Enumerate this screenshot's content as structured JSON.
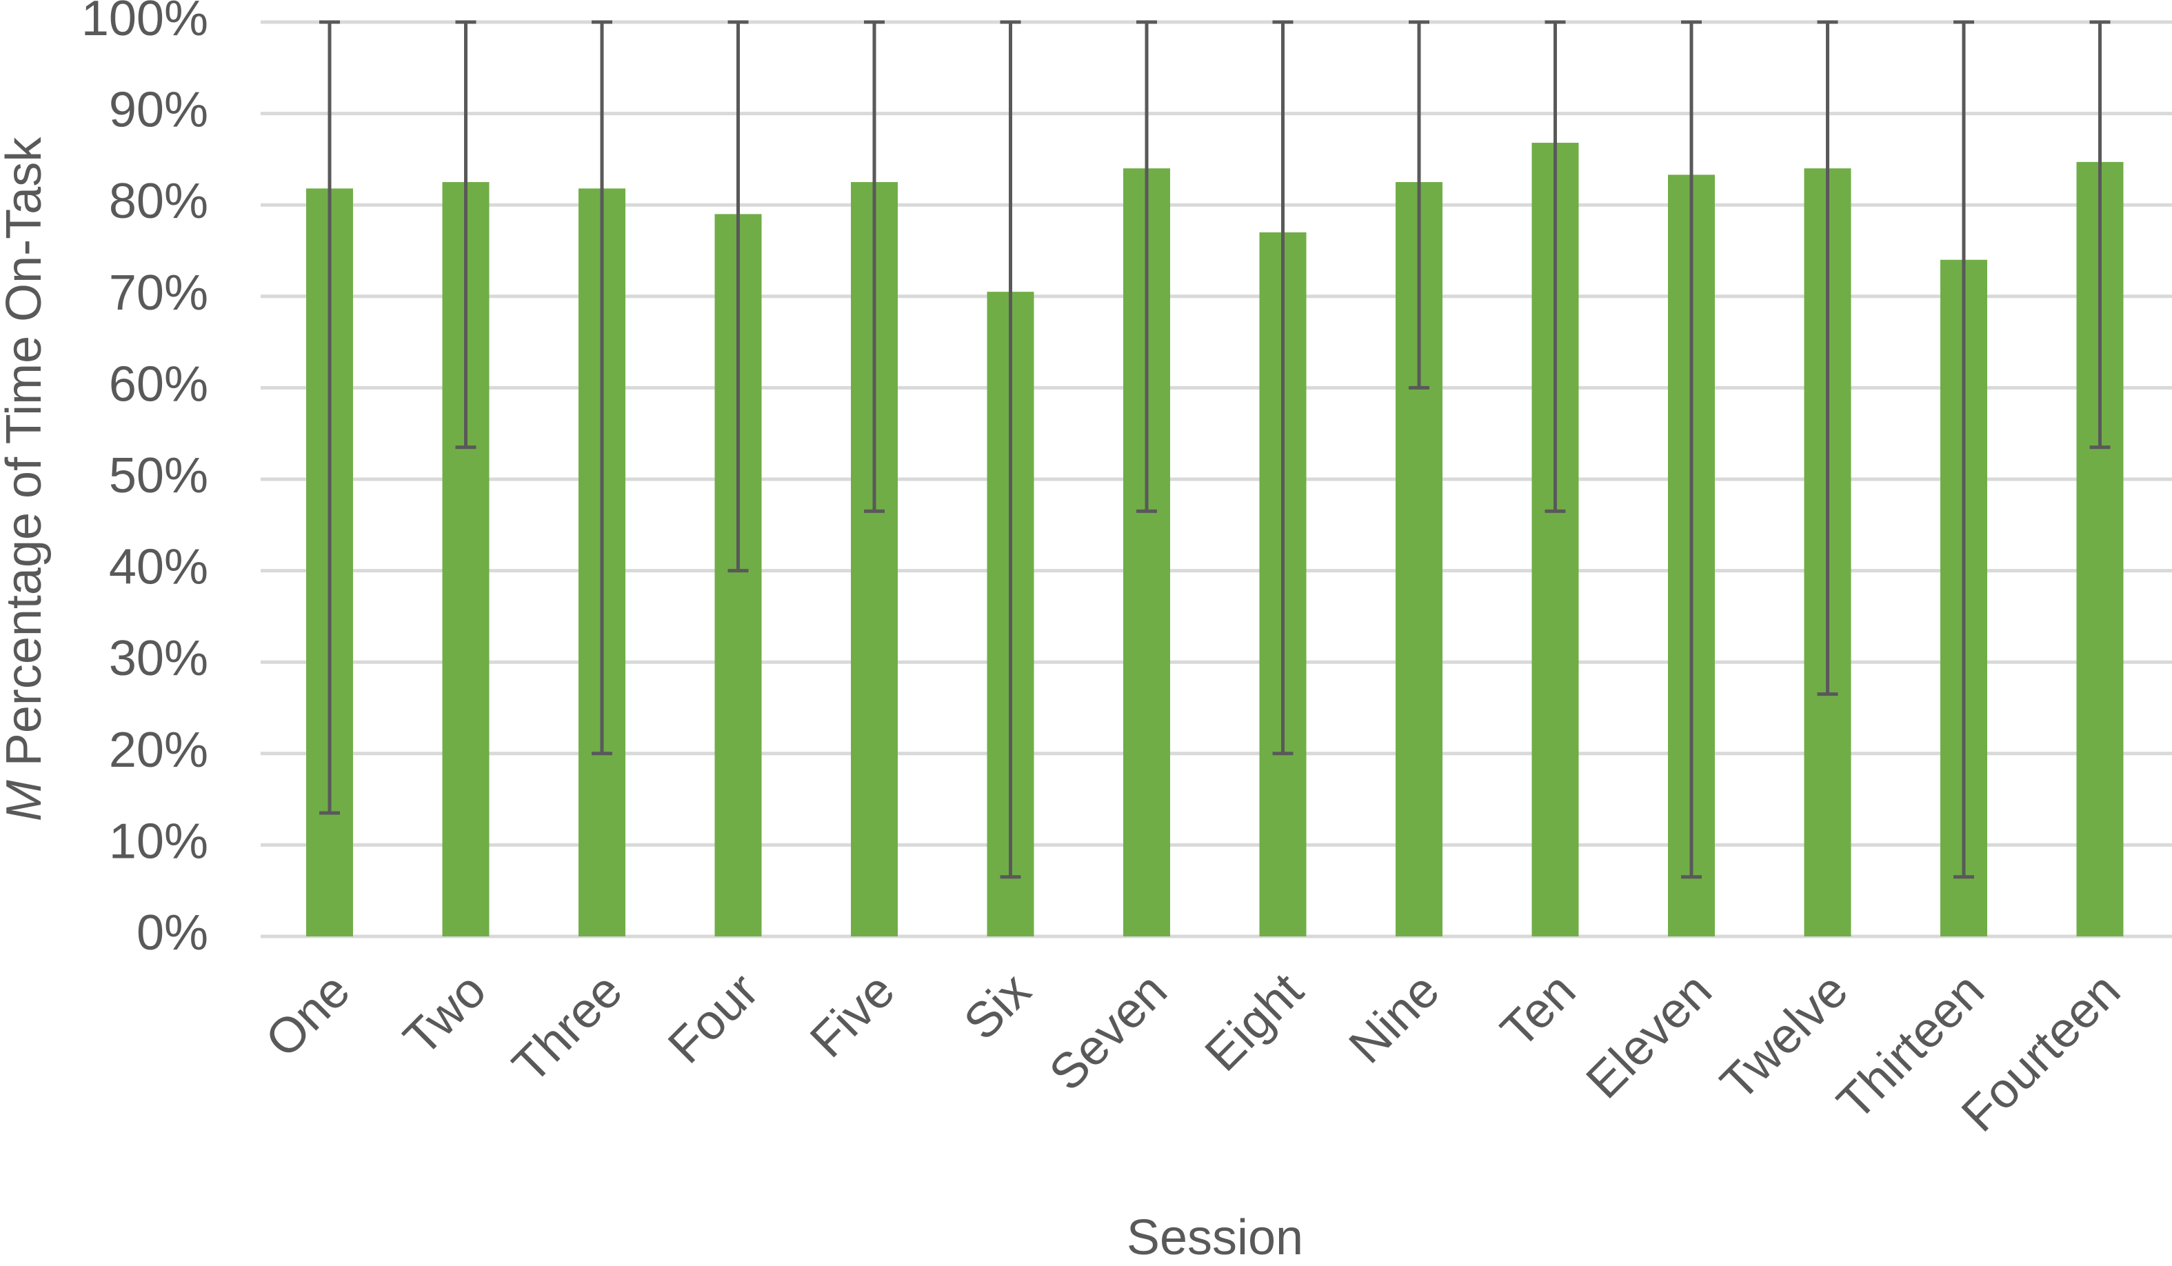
{
  "chart_data": {
    "type": "bar",
    "ylabel_italic": "M",
    "ylabel": "Percentage of Time On-Task",
    "xlabel": "Session",
    "categories": [
      "One",
      "Two",
      "Three",
      "Four",
      "Five",
      "Six",
      "Seven",
      "Eight",
      "Nine",
      "Ten",
      "Eleven",
      "Twelve",
      "Thirteen",
      "Fourteen"
    ],
    "values": [
      81.8,
      82.5,
      81.8,
      79,
      82.5,
      70.5,
      84,
      77,
      82.5,
      86.8,
      83.3,
      84,
      74,
      84.7
    ],
    "range_low": [
      13.5,
      53.5,
      20,
      40,
      46.5,
      6.5,
      46.5,
      20,
      60,
      46.5,
      6.5,
      26.5,
      6.5,
      53.5
    ],
    "range_high": [
      100,
      100,
      100,
      100,
      100,
      100,
      100,
      100,
      100,
      100,
      100,
      100,
      100,
      100
    ],
    "color": "#70ad47",
    "error_color": "#595959",
    "ylim": [
      0,
      100
    ],
    "yticks": [
      {
        "value": 0,
        "label": "0%"
      },
      {
        "value": 10,
        "label": "10%"
      },
      {
        "value": 20,
        "label": "20%"
      },
      {
        "value": 30,
        "label": "30%"
      },
      {
        "value": 40,
        "label": "40%"
      },
      {
        "value": 50,
        "label": "50%"
      },
      {
        "value": 60,
        "label": "60%"
      },
      {
        "value": 70,
        "label": "70%"
      },
      {
        "value": 80,
        "label": "80%"
      },
      {
        "value": 90,
        "label": "90%"
      },
      {
        "value": 100,
        "label": "100%"
      }
    ],
    "grid": true
  }
}
